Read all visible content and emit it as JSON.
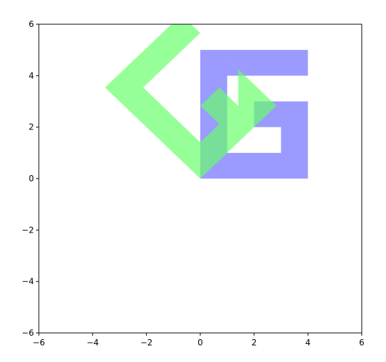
{
  "chart_data": {
    "type": "area",
    "title": "",
    "xlabel": "",
    "ylabel": "",
    "xlim": [
      -6,
      6
    ],
    "ylim": [
      -6,
      6
    ],
    "x_ticks": [
      "−6",
      "−4",
      "−2",
      "0",
      "2",
      "4",
      "6"
    ],
    "y_ticks": [
      "−6",
      "−4",
      "−2",
      "0",
      "2",
      "4",
      "6"
    ],
    "x_tick_values": [
      -6,
      -4,
      -2,
      0,
      2,
      4,
      6
    ],
    "y_tick_values": [
      -6,
      -4,
      -2,
      0,
      2,
      4,
      6
    ],
    "grid": false,
    "series": [
      {
        "color": "#6666ff",
        "opacity": 0.65,
        "points": [
          [
            0,
            0
          ],
          [
            4,
            0
          ],
          [
            4,
            3
          ],
          [
            2,
            3
          ],
          [
            2,
            2
          ],
          [
            3,
            2
          ],
          [
            3,
            1
          ],
          [
            1,
            1
          ],
          [
            1,
            4
          ],
          [
            4,
            4
          ],
          [
            4,
            5
          ],
          [
            0,
            5
          ]
        ]
      },
      {
        "color": "#66ff66",
        "opacity": 0.68,
        "points": [
          [
            0,
            0
          ],
          [
            2.83,
            2.83
          ],
          [
            0.71,
            4.95
          ],
          [
            -0.71,
            3.54
          ],
          [
            0.71,
            2.12
          ],
          [
            1.41,
            2.83
          ],
          [
            0.71,
            3.54
          ],
          [
            0,
            2.83
          ],
          [
            -0.71,
            3.54
          ],
          [
            0.71,
            4.95
          ],
          [
            1.41,
            4.24
          ],
          [
            1.41,
            2.83
          ],
          [
            0,
            1.41
          ],
          [
            -2.12,
            3.54
          ],
          [
            0,
            5.66
          ],
          [
            -0.71,
            6.36
          ],
          [
            -3.54,
            3.54
          ]
        ]
      }
    ]
  }
}
